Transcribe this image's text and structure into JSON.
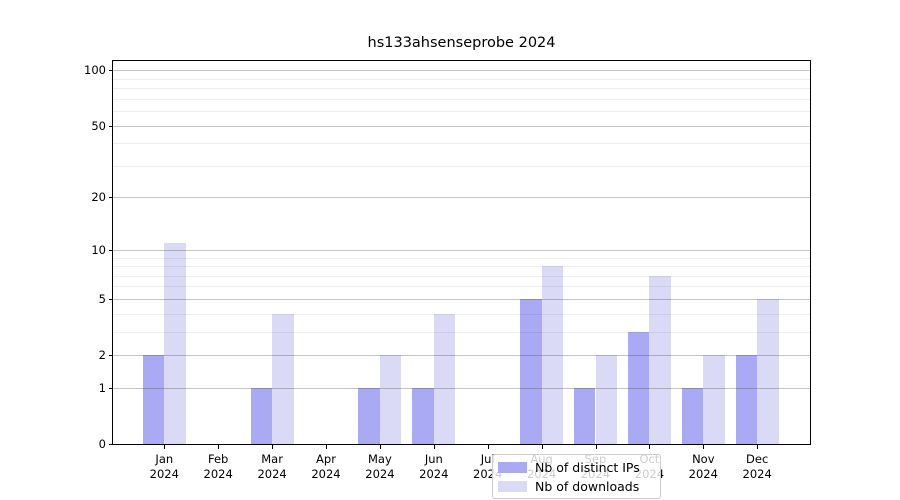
{
  "title": "hs133ahsenseprobe 2024",
  "colors": {
    "distinct_ips_bar": "#a9a9f4",
    "downloads_bar": "#dadaf7",
    "axis": "#000000",
    "grid_major": "#cccccc",
    "grid_minor": "#eeeeee",
    "legend_border": "#cccccc",
    "background": "#ffffff"
  },
  "chart_data": {
    "type": "bar",
    "title": "hs133ahsenseprobe 2024",
    "categories": [
      "Jan",
      "Feb",
      "Mar",
      "Apr",
      "May",
      "Jun",
      "Jul",
      "Aug",
      "Sep",
      "Oct",
      "Nov",
      "Dec"
    ],
    "x_tick_second_line": "2024",
    "series": [
      {
        "name": "Nb of distinct IPs",
        "color": "#a9a9f4",
        "values": [
          2,
          0,
          1,
          0,
          1,
          1,
          0,
          5,
          1,
          3,
          1,
          2
        ]
      },
      {
        "name": "Nb of downloads",
        "color": "#dadaf7",
        "values": [
          11,
          0,
          4,
          0,
          2,
          4,
          0,
          8,
          2,
          7,
          2,
          5
        ]
      }
    ],
    "xlabel": "",
    "ylabel": "",
    "yticks": [
      0,
      1,
      2,
      5,
      10,
      20,
      50,
      100
    ],
    "minor_gridlines": [
      3,
      4,
      6,
      7,
      8,
      9,
      30,
      40,
      60,
      70,
      80,
      90
    ],
    "scale": "log1p",
    "ylim": [
      0,
      112
    ],
    "grid": true,
    "grid_on_top_of_bars": true,
    "legend_position": "lower center"
  }
}
